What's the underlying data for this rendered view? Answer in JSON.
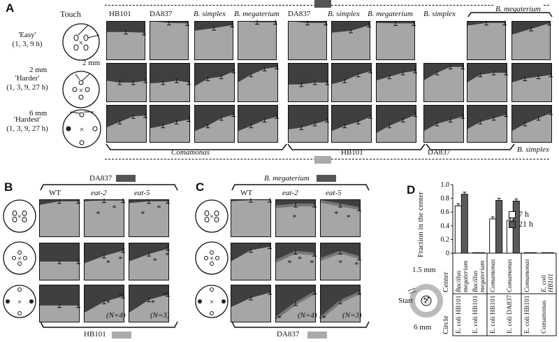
{
  "colors": {
    "dark": "#3f3f3f",
    "light": "#a6a6a6",
    "frame": "#111111"
  },
  "panelA": {
    "letter": "A",
    "touch_label": "Touch",
    "rows": [
      {
        "name": "'Easy'",
        "times": "(1, 3, 9 h)"
      },
      {
        "name": "'Harder'",
        "times": "(1, 3, 9, 27 h)"
      },
      {
        "name": "'Hardest'",
        "times": "(1, 3, 9, 27 h)"
      }
    ],
    "dist_2mm_top": "2 mm",
    "dist_2mm": "2 mm",
    "dist_6mm": "6 mm",
    "columns": [
      "HB101",
      "DA837",
      "B. simplex",
      "B. megaterium",
      "DA837",
      "B. simplex",
      "B. megaterium",
      "B. simplex",
      "B. megaterium"
    ],
    "bottom_groups": [
      "Comamonas",
      "HB101",
      "DA837",
      "B. simplex"
    ],
    "top_fractions": [
      [
        0.55,
        0.5,
        0.52,
        0.3
      ],
      [
        0.42,
        0.45,
        0.4,
        0.46
      ],
      [
        0.35,
        0.55,
        0.72,
        0.78
      ],
      [
        0.35,
        0.62,
        0.78,
        0.82
      ]
    ]
  },
  "panelB": {
    "letter": "B",
    "top_strain": "DA837",
    "bottom_strain": "HB101",
    "columns": [
      "WT",
      "eat-2",
      "eat-5"
    ],
    "n_labels": [
      "(N=4)",
      "(N=3)"
    ],
    "asterisk": "*"
  },
  "panelC": {
    "letter": "C",
    "top_strain": "B. megaterium",
    "bottom_strain": "DA837",
    "columns": [
      "WT",
      "eat-2",
      "eat-5"
    ],
    "n_labels": [
      "(N=4)",
      "(N=3)"
    ],
    "asterisk": "*"
  },
  "panelD": {
    "letter": "D",
    "ylabel": "Fraction in the center",
    "yticks": [
      "1.0",
      "0.8",
      "0.6",
      "0.4",
      "0.2",
      "0"
    ],
    "legend": [
      "7 h",
      "21 h"
    ],
    "center_label": "Center",
    "circle_label": "Circle",
    "start_label": "Start",
    "dim_1_5": "1.5 mm",
    "dim_6": "6 mm",
    "center_names": [
      "Bacillus megaterium",
      "Bacillus megaterium",
      "Comamonas",
      "Comamonas",
      "Comamonas",
      "E. coli HB101"
    ],
    "circle_names": [
      "E. coli HB101",
      "E. coli HB101",
      "E. coli HB101",
      "E. coli DA837",
      "E. coli HB101",
      "Comamonas"
    ]
  },
  "chart_data": {
    "type": "bar",
    "ylabel": "Fraction in the center",
    "ylim": [
      0,
      1.0
    ],
    "series": [
      {
        "name": "7 h",
        "values": [
          0.69,
          0.0,
          0.5,
          0.48,
          0.0,
          0.0
        ]
      },
      {
        "name": "21 h",
        "values": [
          0.86,
          0.0,
          0.77,
          0.76,
          0.0,
          0.0
        ]
      }
    ],
    "errors": [
      [
        0.03,
        0.0,
        0.03,
        0.03,
        0.0,
        0.0
      ],
      [
        0.03,
        0.0,
        0.03,
        0.03,
        0.0,
        0.0
      ]
    ],
    "legend_position": "right"
  }
}
